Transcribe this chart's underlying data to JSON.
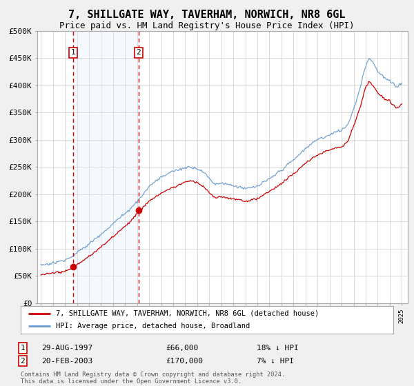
{
  "title": "7, SHILLGATE WAY, TAVERHAM, NORWICH, NR8 6GL",
  "subtitle": "Price paid vs. HM Land Registry's House Price Index (HPI)",
  "ylim": [
    0,
    500000
  ],
  "yticks": [
    0,
    50000,
    100000,
    150000,
    200000,
    250000,
    300000,
    350000,
    400000,
    450000,
    500000
  ],
  "ytick_labels": [
    "£0",
    "£50K",
    "£100K",
    "£150K",
    "£200K",
    "£250K",
    "£300K",
    "£350K",
    "£400K",
    "£450K",
    "£500K"
  ],
  "sale1_yr": 1997.664,
  "sale1_price": 66000,
  "sale2_yr": 2003.131,
  "sale2_price": 170000,
  "sale1_hpi_pct": "18% ↓ HPI",
  "sale2_hpi_pct": "7% ↓ HPI",
  "legend_line1": "7, SHILLGATE WAY, TAVERHAM, NORWICH, NR8 6GL (detached house)",
  "legend_line2": "HPI: Average price, detached house, Broadland",
  "footnote": "Contains HM Land Registry data © Crown copyright and database right 2024.\nThis data is licensed under the Open Government Licence v3.0.",
  "line_color_red": "#cc0000",
  "line_color_blue": "#6699cc",
  "shade_color": "#ddeeff",
  "background_color": "#f0f0f0",
  "plot_bg_color": "#ffffff",
  "grid_color": "#cccccc",
  "title_fontsize": 11,
  "subtitle_fontsize": 9,
  "axis_fontsize": 8
}
